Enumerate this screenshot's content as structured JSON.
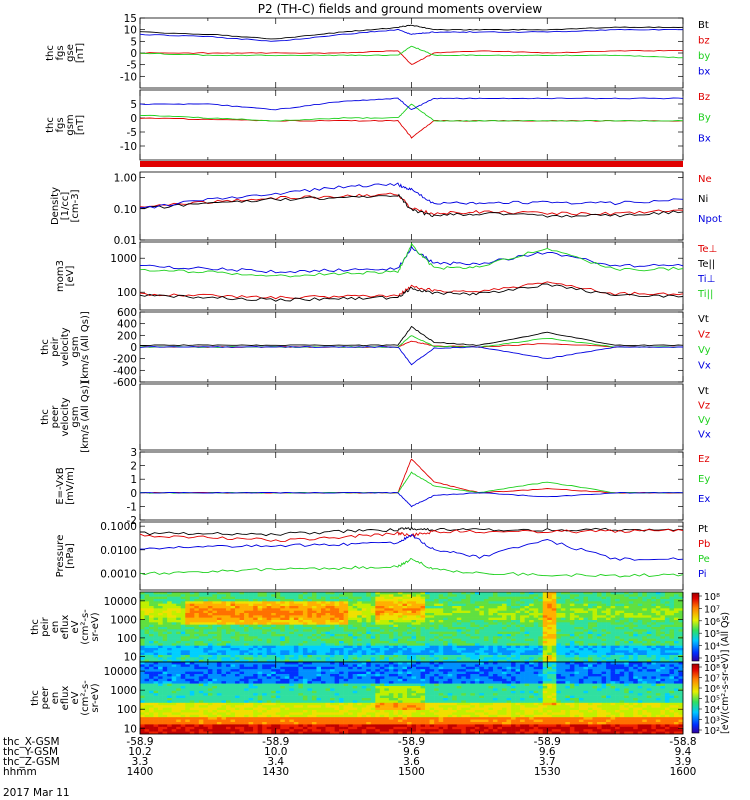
{
  "title": "P2 (TH-C) fields and ground moments overview",
  "date_label": "2017 Mar 11",
  "ephemeris": {
    "labels": [
      "thc_X-GSM",
      "thc_Y-GSM",
      "thc_Z-GSM",
      "hhmm"
    ],
    "columns": [
      {
        "x": "-58.9",
        "y": "10.2",
        "z": "3.3",
        "t": "1400"
      },
      {
        "x": "-58.9",
        "y": "10.0",
        "z": "3.4",
        "t": "1430"
      },
      {
        "x": "-58.9",
        "y": "9.6",
        "z": "3.6",
        "t": "1500"
      },
      {
        "x": "-58.9",
        "y": "9.6",
        "z": "3.7",
        "t": "1530"
      },
      {
        "x": "-58.8",
        "y": "9.4",
        "z": "3.9",
        "t": "1600"
      }
    ]
  },
  "colors": {
    "black": "#000000",
    "red": "#e00000",
    "green": "#1ed01e",
    "blue": "#0000e0"
  },
  "panels": [
    {
      "id": "fgs-gse",
      "ylabel": [
        "thc",
        "fgs",
        "gse",
        "[nT]"
      ],
      "scale": "linear",
      "ylim": [
        -15,
        15
      ],
      "yticks": [
        "15",
        "10",
        "5",
        "0",
        "-5",
        "-10"
      ],
      "legend": [
        {
          "text": "Bt",
          "color": "black"
        },
        {
          "text": "bz",
          "color": "red"
        },
        {
          "text": "by",
          "color": "green"
        },
        {
          "text": "bx",
          "color": "blue"
        }
      ]
    },
    {
      "id": "fgs-gsm",
      "ylabel": [
        "thc",
        "fgs",
        "gsm",
        "[nT]"
      ],
      "scale": "linear",
      "ylim": [
        -15,
        10
      ],
      "yticks": [
        "5",
        "0",
        "-5",
        "-10"
      ],
      "legend": [
        {
          "text": "Bz",
          "color": "red"
        },
        {
          "text": "By",
          "color": "green"
        },
        {
          "text": "Bx",
          "color": "blue"
        }
      ]
    },
    {
      "id": "density",
      "ylabel": [
        "Density",
        "[1/cc]",
        "[cm-3]"
      ],
      "scale": "log",
      "ylim": [
        0.01,
        1.5
      ],
      "yticks": [
        "1.00",
        "0.10",
        "0.01"
      ],
      "legend": [
        {
          "text": "Ne",
          "color": "red"
        },
        {
          "text": "Ni",
          "color": "black"
        },
        {
          "text": "Npot",
          "color": "blue"
        }
      ]
    },
    {
      "id": "temperature",
      "ylabel": [
        "mom3",
        "[eV]"
      ],
      "scale": "log",
      "ylim": [
        30,
        3000
      ],
      "yticks": [
        "1000",
        "100"
      ],
      "legend": [
        {
          "text": "Te⊥",
          "color": "red"
        },
        {
          "text": "Te||",
          "color": "black"
        },
        {
          "text": "Ti⊥",
          "color": "blue"
        },
        {
          "text": "Ti||",
          "color": "green"
        }
      ]
    },
    {
      "id": "peir-velocity",
      "ylabel": [
        "thc",
        "peir",
        "velocity",
        "gsm",
        "[km/s (All Qs)]"
      ],
      "scale": "linear",
      "ylim": [
        -600,
        600
      ],
      "yticks": [
        "600",
        "400",
        "200",
        "0",
        "-200",
        "-400",
        "-600"
      ],
      "legend": [
        {
          "text": "Vt",
          "color": "black"
        },
        {
          "text": "Vz",
          "color": "red"
        },
        {
          "text": "Vy",
          "color": "green"
        },
        {
          "text": "Vx",
          "color": "blue"
        }
      ]
    },
    {
      "id": "peer-velocity",
      "ylabel": [
        "thc",
        "peer",
        "velocity",
        "gsm",
        "[km/s (All Qs)]"
      ],
      "scale": "linear",
      "ylim": [
        -600,
        600
      ],
      "yticks": [],
      "legend": [
        {
          "text": "Vt",
          "color": "black"
        },
        {
          "text": "Vz",
          "color": "red"
        },
        {
          "text": "Vy",
          "color": "green"
        },
        {
          "text": "Vx",
          "color": "blue"
        }
      ]
    },
    {
      "id": "efield",
      "ylabel": [
        "E=-VxB",
        "[mV/m]"
      ],
      "scale": "linear",
      "ylim": [
        -2,
        3
      ],
      "yticks": [
        "3",
        "2",
        "1",
        "0",
        "-1",
        "-2"
      ],
      "legend": [
        {
          "text": "Ez",
          "color": "red"
        },
        {
          "text": "Ey",
          "color": "green"
        },
        {
          "text": "Ex",
          "color": "blue"
        }
      ]
    },
    {
      "id": "pressure",
      "ylabel": [
        "Pressure",
        "[nPa]"
      ],
      "scale": "log",
      "ylim": [
        0.0002,
        0.15
      ],
      "yticks": [
        "0.1000",
        "0.0100",
        "0.0010"
      ],
      "legend": [
        {
          "text": "Pt",
          "color": "black"
        },
        {
          "text": "Pb",
          "color": "red"
        },
        {
          "text": "Pe",
          "color": "green"
        },
        {
          "text": "Pi",
          "color": "blue"
        }
      ]
    },
    {
      "id": "peir-spectrogram",
      "ylabel": [
        "thc",
        "peir",
        "en",
        "eflux",
        "eV",
        "(cm²-s-",
        "sr-eV)"
      ],
      "scale": "log",
      "ylim": [
        5,
        30000
      ],
      "yticks": [
        "10000",
        "1000",
        "100",
        "10"
      ],
      "legend": []
    },
    {
      "id": "peer-spectrogram",
      "ylabel": [
        "thc",
        "peer",
        "en",
        "eflux",
        "eV",
        "(cm²-s-",
        "sr-eV)"
      ],
      "scale": "log",
      "ylim": [
        5,
        30000
      ],
      "yticks": [
        "10000",
        "1000",
        "100",
        "10"
      ],
      "legend": []
    }
  ],
  "colorbar": {
    "peir": {
      "title": "[eV/(cm²-s-sr-eV)] (All Qs)",
      "ticks": [
        "10⁸",
        "10⁷",
        "10⁶",
        "10⁵",
        "10⁴",
        "10³"
      ]
    },
    "peer": {
      "title": "[eV/(cm²-s-sr-eV)] (All Qs)",
      "ticks": [
        "10⁸",
        "10⁷",
        "10⁶",
        "10⁵",
        "10⁴",
        "10³",
        "10²"
      ]
    }
  },
  "chart_data": {
    "type": "line",
    "title": "P2 (TH-C) fields and ground moments overview",
    "x": [
      "1400",
      "1415",
      "1430",
      "1445",
      "1457",
      "1500",
      "1505",
      "1515",
      "1530",
      "1545",
      "1600"
    ],
    "xlabel": "hhmm",
    "panels": [
      {
        "panel": "fgs-gse",
        "series": [
          {
            "name": "Bt",
            "values": [
              9,
              8,
              6,
              9,
              11,
              12,
              10,
              10,
              10,
              11,
              11
            ]
          },
          {
            "name": "bz",
            "values": [
              0,
              0,
              0,
              0,
              1,
              -5,
              0,
              1,
              0,
              1,
              1
            ]
          },
          {
            "name": "by",
            "values": [
              0,
              -1,
              -1,
              -1,
              -1,
              3,
              -1,
              -1,
              -1,
              -1,
              -2
            ]
          },
          {
            "name": "bx",
            "values": [
              8,
              7,
              5,
              8,
              10,
              8,
              9,
              9,
              9,
              10,
              10
            ]
          }
        ]
      },
      {
        "panel": "fgs-gsm",
        "series": [
          {
            "name": "Bz",
            "values": [
              0,
              -0.5,
              -1,
              -1,
              -1,
              -7,
              -1,
              -1,
              -1,
              -1,
              -1
            ]
          },
          {
            "name": "By",
            "values": [
              1,
              0,
              -1,
              0,
              0,
              5,
              -1,
              -1,
              -1,
              -1,
              -1
            ]
          },
          {
            "name": "Bx",
            "values": [
              5,
              5,
              3,
              6,
              7,
              3,
              7,
              7,
              7,
              7,
              7
            ]
          }
        ]
      },
      {
        "panel": "density",
        "series": [
          {
            "name": "Ne",
            "values": [
              0.12,
              0.16,
              0.22,
              0.25,
              0.3,
              0.1,
              0.07,
              0.08,
              0.07,
              0.07,
              0.09
            ]
          },
          {
            "name": "Ni",
            "values": [
              0.1,
              0.15,
              0.2,
              0.23,
              0.28,
              0.09,
              0.06,
              0.07,
              0.06,
              0.06,
              0.08
            ]
          },
          {
            "name": "Npot",
            "values": [
              0.1,
              0.2,
              0.3,
              0.5,
              0.6,
              0.4,
              0.14,
              0.16,
              0.16,
              0.15,
              0.2
            ]
          }
        ]
      },
      {
        "panel": "temperature",
        "series": [
          {
            "name": "Te⊥",
            "values": [
              90,
              80,
              70,
              75,
              80,
              150,
              110,
              100,
              200,
              90,
              90
            ]
          },
          {
            "name": "Te||",
            "values": [
              80,
              70,
              60,
              65,
              70,
              130,
              95,
              90,
              170,
              80,
              75
            ]
          },
          {
            "name": "Ti⊥",
            "values": [
              600,
              500,
              400,
              450,
              500,
              2000,
              700,
              700,
              1500,
              600,
              600
            ]
          },
          {
            "name": "Ti||",
            "values": [
              450,
              400,
              300,
              350,
              400,
              2500,
              500,
              550,
              2000,
              450,
              500
            ]
          }
        ]
      },
      {
        "panel": "peir-velocity",
        "series": [
          {
            "name": "Vt",
            "values": [
              30,
              30,
              30,
              30,
              30,
              350,
              80,
              30,
              250,
              30,
              30
            ]
          },
          {
            "name": "Vz",
            "values": [
              0,
              0,
              0,
              0,
              0,
              100,
              20,
              0,
              60,
              0,
              0
            ]
          },
          {
            "name": "Vy",
            "values": [
              0,
              0,
              0,
              0,
              0,
              200,
              10,
              0,
              150,
              0,
              0
            ]
          },
          {
            "name": "Vx",
            "values": [
              0,
              0,
              0,
              0,
              0,
              -300,
              -20,
              0,
              -200,
              0,
              0
            ]
          }
        ]
      },
      {
        "panel": "efield",
        "series": [
          {
            "name": "Ez",
            "values": [
              0,
              0,
              0,
              0,
              0,
              2.5,
              0.8,
              0,
              0.3,
              0,
              0
            ]
          },
          {
            "name": "Ey",
            "values": [
              0,
              0,
              0,
              0,
              0,
              1.5,
              0.5,
              0,
              0.8,
              0,
              0
            ]
          },
          {
            "name": "Ex",
            "values": [
              0,
              0,
              0,
              0,
              0,
              -1,
              -0.2,
              0,
              -0.3,
              0,
              0
            ]
          }
        ]
      },
      {
        "panel": "pressure",
        "series": [
          {
            "name": "Pt",
            "values": [
              0.05,
              0.05,
              0.045,
              0.06,
              0.07,
              0.08,
              0.07,
              0.07,
              0.07,
              0.07,
              0.07
            ]
          },
          {
            "name": "Pb",
            "values": [
              0.04,
              0.035,
              0.025,
              0.035,
              0.05,
              0.04,
              0.06,
              0.06,
              0.06,
              0.06,
              0.065
            ]
          },
          {
            "name": "Pe",
            "values": [
              0.001,
              0.0012,
              0.0015,
              0.0017,
              0.002,
              0.004,
              0.0015,
              0.001,
              0.0009,
              0.0008,
              0.0009
            ]
          },
          {
            "name": "Pi",
            "values": [
              0.012,
              0.013,
              0.015,
              0.017,
              0.02,
              0.04,
              0.01,
              0.005,
              0.025,
              0.004,
              0.004
            ]
          }
        ]
      }
    ]
  }
}
